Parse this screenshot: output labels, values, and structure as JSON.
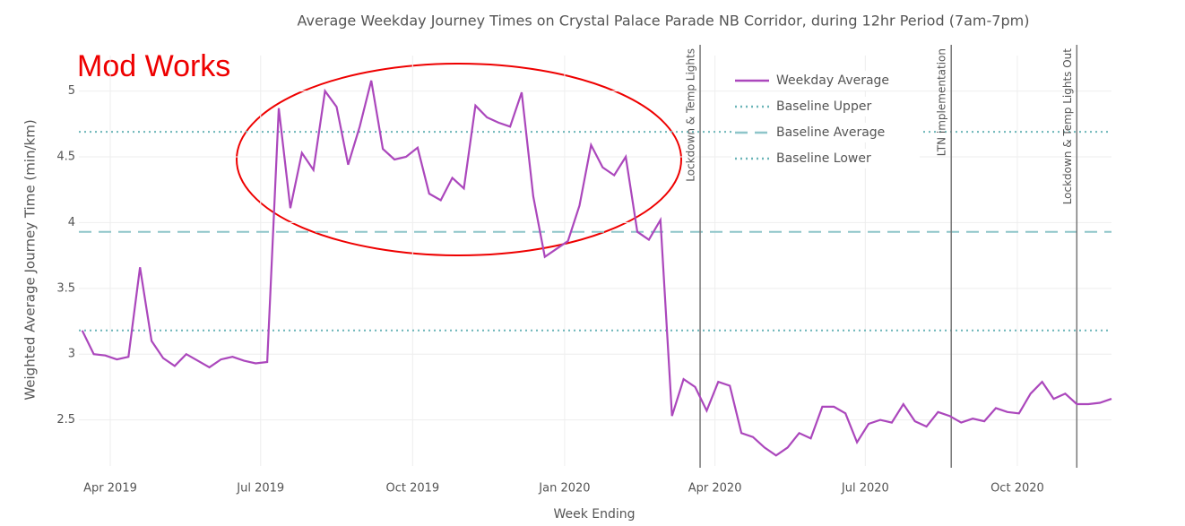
{
  "chart_data": {
    "type": "line",
    "title": "Average Weekday Journey Times on Crystal Palace Parade NB Corridor, during 12hr Period (7am-7pm)",
    "xlabel": "Week Ending",
    "ylabel": "Weighted Average Journey Time (min/km)",
    "x": [
      "2019-03-15",
      "2019-03-22",
      "2019-03-29",
      "2019-04-05",
      "2019-04-12",
      "2019-04-19",
      "2019-04-26",
      "2019-05-03",
      "2019-05-10",
      "2019-05-17",
      "2019-05-24",
      "2019-05-31",
      "2019-06-07",
      "2019-06-14",
      "2019-06-21",
      "2019-06-28",
      "2019-07-05",
      "2019-07-12",
      "2019-07-19",
      "2019-07-26",
      "2019-08-02",
      "2019-08-09",
      "2019-08-16",
      "2019-08-23",
      "2019-08-30",
      "2019-09-06",
      "2019-09-13",
      "2019-09-20",
      "2019-09-27",
      "2019-10-04",
      "2019-10-11",
      "2019-10-18",
      "2019-10-25",
      "2019-11-01",
      "2019-11-08",
      "2019-11-15",
      "2019-11-22",
      "2019-11-29",
      "2019-12-06",
      "2019-12-13",
      "2019-12-20",
      "2019-12-27",
      "2020-01-03",
      "2020-01-10",
      "2020-01-17",
      "2020-01-24",
      "2020-01-31",
      "2020-02-07",
      "2020-02-14",
      "2020-02-21",
      "2020-02-28",
      "2020-03-06",
      "2020-03-13",
      "2020-03-20",
      "2020-03-27",
      "2020-04-03",
      "2020-04-10",
      "2020-04-17",
      "2020-04-24",
      "2020-05-01",
      "2020-05-08",
      "2020-05-15",
      "2020-05-22",
      "2020-05-29",
      "2020-06-05",
      "2020-06-12",
      "2020-06-19",
      "2020-06-26",
      "2020-07-03",
      "2020-07-10",
      "2020-07-17",
      "2020-07-24",
      "2020-07-31",
      "2020-08-07",
      "2020-08-14",
      "2020-08-21",
      "2020-08-28",
      "2020-09-04",
      "2020-09-11",
      "2020-09-18",
      "2020-09-25",
      "2020-10-02",
      "2020-10-09",
      "2020-10-16",
      "2020-10-23",
      "2020-10-30",
      "2020-11-06",
      "2020-11-13",
      "2020-11-20",
      "2020-11-27"
    ],
    "series": [
      {
        "name": "Weekday Average",
        "color": "#ab47bc",
        "values": [
          3.18,
          3.0,
          2.99,
          2.96,
          2.98,
          3.66,
          3.1,
          2.97,
          2.91,
          3.0,
          2.95,
          2.9,
          2.96,
          2.98,
          2.95,
          2.93,
          2.94,
          4.87,
          4.11,
          4.53,
          4.4,
          5.0,
          4.88,
          4.44,
          4.73,
          5.08,
          4.56,
          4.48,
          4.5,
          4.57,
          4.22,
          4.17,
          4.34,
          4.26,
          4.89,
          4.8,
          4.76,
          4.73,
          4.99,
          4.2,
          3.74,
          3.8,
          3.86,
          4.13,
          4.59,
          4.42,
          4.36,
          4.5,
          3.93,
          3.87,
          4.02,
          2.53,
          2.81,
          2.75,
          2.57,
          2.79,
          2.76,
          2.4,
          2.37,
          2.29,
          2.23,
          2.29,
          2.4,
          2.36,
          2.6,
          2.6,
          2.55,
          2.33,
          2.47,
          2.5,
          2.48,
          2.62,
          2.49,
          2.45,
          2.56,
          2.53,
          2.48,
          2.51,
          2.49,
          2.59,
          2.56,
          2.55,
          2.7,
          2.79,
          2.66,
          2.7,
          2.62,
          2.62,
          2.63,
          2.66
        ]
      }
    ],
    "hlines": [
      {
        "name": "Baseline Upper",
        "color": "#6bb5b8",
        "dash": "dot",
        "value": 4.69
      },
      {
        "name": "Baseline Average",
        "color": "#8ec5c9",
        "dash": "dash",
        "value": 3.93
      },
      {
        "name": "Baseline Lower",
        "color": "#6bb5b8",
        "dash": "dot",
        "value": 3.18
      }
    ],
    "vlines": [
      {
        "label": "Lockdown & Temp Lights",
        "x": "2020-03-23"
      },
      {
        "label": "LTN implementation",
        "x": "2020-08-22"
      },
      {
        "label": "Lockdown & Temp Lights Out",
        "x": "2020-11-06"
      }
    ],
    "annotation": "Mod Works",
    "xlim": [
      "2019-03-13",
      "2020-11-27"
    ],
    "xticks": [
      {
        "value": "2019-04-01",
        "label": "Apr 2019"
      },
      {
        "value": "2019-07-01",
        "label": "Jul 2019"
      },
      {
        "value": "2019-10-01",
        "label": "Oct 2019"
      },
      {
        "value": "2020-01-01",
        "label": "Jan 2020"
      },
      {
        "value": "2020-04-01",
        "label": "Apr 2020"
      },
      {
        "value": "2020-07-01",
        "label": "Jul 2020"
      },
      {
        "value": "2020-10-01",
        "label": "Oct 2020"
      }
    ],
    "ylim": [
      2.15,
      5.27
    ],
    "yticks": [
      2.5,
      3,
      3.5,
      4,
      4.5,
      5
    ],
    "grid": true
  }
}
